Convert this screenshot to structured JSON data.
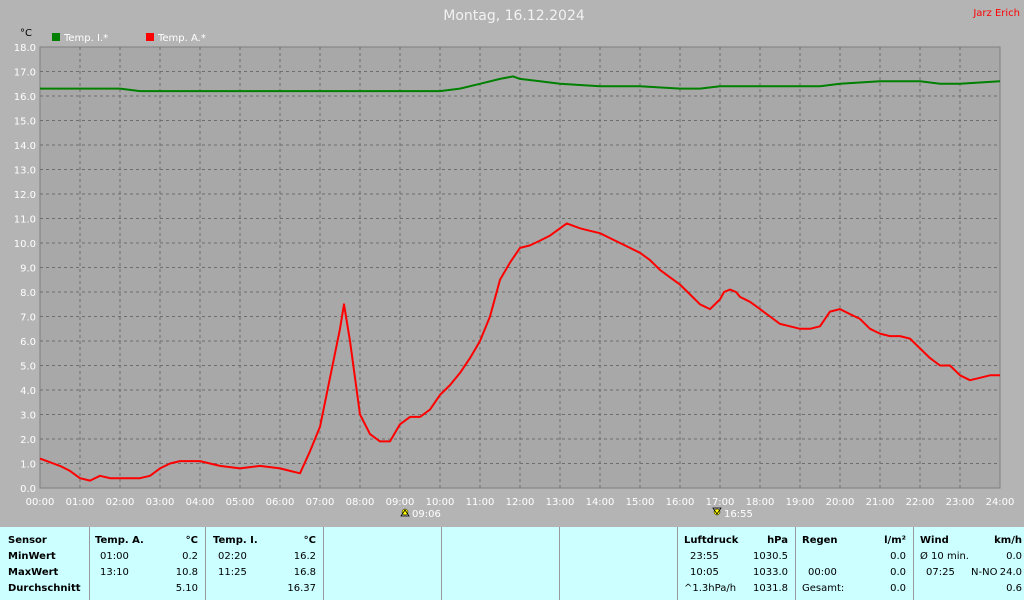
{
  "header": {
    "title": "Montag, 16.12.2024",
    "author": "Jarz Erich"
  },
  "colors": {
    "background": "#b4b4b4",
    "plot_bg": "#a8a8a8",
    "indoor": "#008000",
    "outdoor": "#ff0000",
    "panel": "#ccffff"
  },
  "markers": {
    "sunrise": "09:06",
    "sunset": "16:55",
    "sunrise_icon": "sunrise-icon",
    "sunset_icon": "sunset-icon"
  },
  "chart_data": {
    "type": "line",
    "title": "Montag, 16.12.2024",
    "ylabel": "°C",
    "xlabel": "",
    "ylim": [
      0,
      18
    ],
    "yticks": [
      "0.0",
      "1.0",
      "2.0",
      "3.0",
      "4.0",
      "5.0",
      "6.0",
      "7.0",
      "8.0",
      "9.0",
      "10.0",
      "11.0",
      "12.0",
      "13.0",
      "14.0",
      "15.0",
      "16.0",
      "17.0",
      "18.0"
    ],
    "xticks": [
      "00:00",
      "01:00",
      "02:00",
      "03:00",
      "04:00",
      "05:00",
      "06:00",
      "07:00",
      "08:00",
      "09:00",
      "10:00",
      "11:00",
      "12:00",
      "13:00",
      "14:00",
      "15:00",
      "16:00",
      "17:00",
      "18:00",
      "19:00",
      "20:00",
      "21:00",
      "22:00",
      "23:00",
      "24:00"
    ],
    "grid": true,
    "legend_position": "top-left",
    "series": [
      {
        "name": "Temp. I.*",
        "color": "#008000",
        "x": [
          0,
          1,
          2,
          2.5,
          3,
          4,
          5,
          6,
          7,
          8,
          9,
          10,
          10.5,
          11,
          11.5,
          11.83,
          12,
          12.5,
          13,
          14,
          15,
          16,
          16.5,
          17,
          18,
          19,
          19.5,
          20,
          21,
          22,
          22.5,
          23,
          24
        ],
        "y": [
          16.3,
          16.3,
          16.3,
          16.2,
          16.2,
          16.2,
          16.2,
          16.2,
          16.2,
          16.2,
          16.2,
          16.2,
          16.3,
          16.5,
          16.7,
          16.8,
          16.7,
          16.6,
          16.5,
          16.4,
          16.4,
          16.3,
          16.3,
          16.4,
          16.4,
          16.4,
          16.4,
          16.5,
          16.6,
          16.6,
          16.5,
          16.5,
          16.6
        ]
      },
      {
        "name": "Temp. A.*",
        "color": "#ff0000",
        "x": [
          0,
          0.5,
          0.75,
          1.0,
          1.25,
          1.5,
          1.75,
          2.0,
          2.5,
          2.75,
          3.0,
          3.25,
          3.5,
          4.0,
          4.5,
          5.0,
          5.5,
          6.0,
          6.25,
          6.5,
          6.75,
          7.0,
          7.25,
          7.5,
          7.6,
          7.75,
          8.0,
          8.25,
          8.5,
          8.75,
          9.0,
          9.25,
          9.5,
          9.75,
          10.0,
          10.25,
          10.5,
          10.75,
          11.0,
          11.25,
          11.5,
          11.75,
          12.0,
          12.25,
          12.5,
          12.75,
          13.0,
          13.17,
          13.5,
          13.75,
          14.0,
          14.25,
          14.5,
          14.75,
          15.0,
          15.25,
          15.5,
          15.75,
          16.0,
          16.25,
          16.5,
          16.75,
          17.0,
          17.1,
          17.25,
          17.4,
          17.5,
          17.75,
          18.0,
          18.25,
          18.5,
          18.75,
          19.0,
          19.25,
          19.5,
          19.75,
          20.0,
          20.25,
          20.5,
          20.75,
          21.0,
          21.25,
          21.5,
          21.75,
          22.0,
          22.25,
          22.5,
          22.75,
          23.0,
          23.25,
          23.5,
          23.75,
          24.0
        ],
        "y": [
          1.2,
          0.9,
          0.7,
          0.4,
          0.3,
          0.5,
          0.4,
          0.4,
          0.4,
          0.5,
          0.8,
          1.0,
          1.1,
          1.1,
          0.9,
          0.8,
          0.9,
          0.8,
          0.7,
          0.6,
          1.5,
          2.5,
          4.5,
          6.5,
          7.5,
          6.0,
          3.0,
          2.2,
          1.9,
          1.9,
          2.6,
          2.9,
          2.9,
          3.2,
          3.8,
          4.2,
          4.7,
          5.3,
          6.0,
          7.0,
          8.5,
          9.2,
          9.8,
          9.9,
          10.1,
          10.3,
          10.6,
          10.8,
          10.6,
          10.5,
          10.4,
          10.2,
          10.0,
          9.8,
          9.6,
          9.3,
          8.9,
          8.6,
          8.3,
          7.9,
          7.5,
          7.3,
          7.7,
          8.0,
          8.1,
          8.0,
          7.8,
          7.6,
          7.3,
          7.0,
          6.7,
          6.6,
          6.5,
          6.5,
          6.6,
          7.2,
          7.3,
          7.1,
          6.9,
          6.5,
          6.3,
          6.2,
          6.2,
          6.1,
          5.7,
          5.3,
          5.0,
          5.0,
          4.6,
          4.4,
          4.5,
          4.6,
          4.6
        ]
      }
    ]
  },
  "stats": {
    "sensor": {
      "header": "Sensor",
      "rows": [
        "MinWert",
        "MaxWert",
        "Durchschnitt"
      ]
    },
    "temp_a": {
      "header": "Temp. A.",
      "unit": "°C",
      "min_time": "01:00",
      "min": "0.2",
      "max_time": "13:10",
      "max": "10.8",
      "avg": "5.10"
    },
    "temp_i": {
      "header": "Temp. I.",
      "unit": "°C",
      "min_time": "02:20",
      "min": "16.2",
      "max_time": "11:25",
      "max": "16.8",
      "avg": "16.37"
    },
    "pressure": {
      "header": "Luftdruck",
      "unit": "hPa",
      "min_time": "23:55",
      "min": "1030.5",
      "max_time": "10:05",
      "max": "1033.0",
      "trend_label": "^1.3hPa/h",
      "avg": "1031.8"
    },
    "rain": {
      "header": "Regen",
      "unit": "l/m²",
      "min": "0.0",
      "max_time": "00:00",
      "max": "0.0",
      "total_label": "Gesamt:",
      "total": "0.0"
    },
    "wind": {
      "header": "Wind",
      "unit": "km/h",
      "min_label": "Ø 10 min.",
      "min": "0.0",
      "max_time": "07:25",
      "max_dir": "N-NO",
      "max": "24.0",
      "avg": "0.6"
    }
  }
}
